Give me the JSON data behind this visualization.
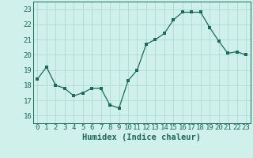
{
  "x": [
    0,
    1,
    2,
    3,
    4,
    5,
    6,
    7,
    8,
    9,
    10,
    11,
    12,
    13,
    14,
    15,
    16,
    17,
    18,
    19,
    20,
    21,
    22,
    23
  ],
  "y": [
    18.4,
    19.2,
    18.0,
    17.8,
    17.3,
    17.5,
    17.8,
    17.8,
    16.7,
    16.5,
    18.3,
    19.0,
    20.7,
    21.0,
    21.4,
    22.3,
    22.8,
    22.8,
    22.8,
    21.8,
    20.9,
    20.1,
    20.2,
    20.0
  ],
  "line_color": "#1a6b5a",
  "marker": "s",
  "marker_size": 2.5,
  "bg_color": "#d0f0eb",
  "grid_color": "#a8d5ce",
  "xlabel": "Humidex (Indice chaleur)",
  "ylim": [
    15.5,
    23.5
  ],
  "yticks": [
    16,
    17,
    18,
    19,
    20,
    21,
    22,
    23
  ],
  "xticks": [
    0,
    1,
    2,
    3,
    4,
    5,
    6,
    7,
    8,
    9,
    10,
    11,
    12,
    13,
    14,
    15,
    16,
    17,
    18,
    19,
    20,
    21,
    22,
    23
  ],
  "tick_label_fontsize": 6.5,
  "xlabel_fontsize": 7.5
}
